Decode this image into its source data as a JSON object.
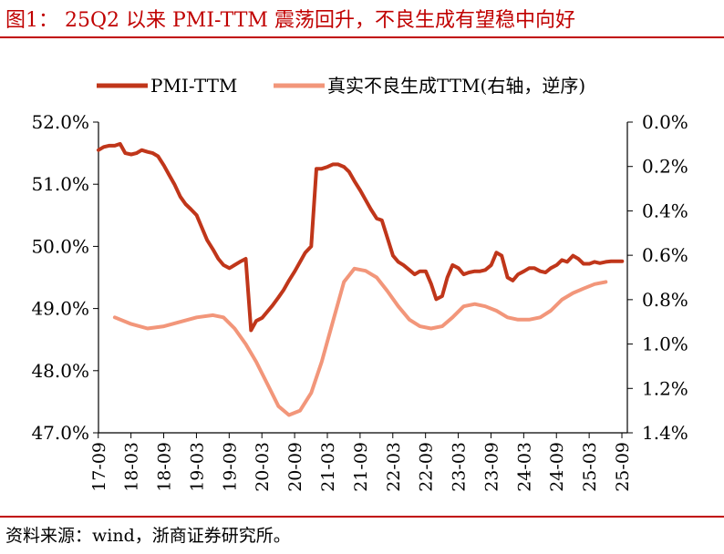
{
  "header": {
    "title": "图1： 25Q2 以来 PMI-TTM 震荡回升，不良生成有望稳中向好"
  },
  "footer": {
    "source": "资料来源：wind，浙商证券研究所。"
  },
  "colors": {
    "title": "#c00000",
    "pmi_line": "#c0361a",
    "npl_line": "#f2967a"
  },
  "chart_data": {
    "type": "line",
    "title": "",
    "legend": [
      "PMI-TTM",
      "真实不良生成TTM(右轴，逆序)"
    ],
    "legend_position": "top",
    "x_ticks": [
      "17-09",
      "18-03",
      "18-09",
      "19-03",
      "19-09",
      "20-03",
      "20-09",
      "21-03",
      "21-09",
      "22-03",
      "22-09",
      "23-03",
      "23-09",
      "24-03",
      "24-09",
      "25-03",
      "25-09"
    ],
    "y_left": {
      "label": "",
      "ylim": [
        47.0,
        52.0
      ],
      "ticks": [
        "47.0%",
        "48.0%",
        "49.0%",
        "50.0%",
        "51.0%",
        "52.0%"
      ]
    },
    "y_right": {
      "label": "",
      "ylim": [
        0.0,
        1.4
      ],
      "reversed": true,
      "ticks": [
        "0.0%",
        "0.2%",
        "0.4%",
        "0.6%",
        "0.8%",
        "1.0%",
        "1.2%",
        "1.4%"
      ]
    },
    "series": [
      {
        "name": "PMI-TTM",
        "axis": "left",
        "color": "#c0361a",
        "x": [
          2017.67,
          2017.75,
          2017.83,
          2017.92,
          2018.0,
          2018.08,
          2018.17,
          2018.25,
          2018.33,
          2018.42,
          2018.5,
          2018.58,
          2018.67,
          2018.75,
          2018.83,
          2018.92,
          2019.0,
          2019.08,
          2019.17,
          2019.25,
          2019.33,
          2019.42,
          2019.5,
          2019.58,
          2019.67,
          2019.75,
          2019.83,
          2019.92,
          2020.0,
          2020.08,
          2020.17,
          2020.25,
          2020.33,
          2020.42,
          2020.5,
          2020.58,
          2020.67,
          2020.75,
          2020.83,
          2020.92,
          2021.0,
          2021.08,
          2021.17,
          2021.25,
          2021.33,
          2021.42,
          2021.5,
          2021.58,
          2021.67,
          2021.75,
          2021.83,
          2021.92,
          2022.0,
          2022.08,
          2022.17,
          2022.25,
          2022.33,
          2022.42,
          2022.5,
          2022.58,
          2022.67,
          2022.75,
          2022.83,
          2022.92,
          2023.0,
          2023.08,
          2023.17,
          2023.25,
          2023.33,
          2023.42,
          2023.5,
          2023.58,
          2023.67,
          2023.75,
          2023.83,
          2023.92,
          2024.0,
          2024.08,
          2024.17,
          2024.25,
          2024.33,
          2024.42,
          2024.5,
          2024.58,
          2024.67,
          2024.75,
          2024.83,
          2024.92,
          2025.0,
          2025.08,
          2025.17,
          2025.25,
          2025.33,
          2025.42,
          2025.5,
          2025.58,
          2025.67
        ],
        "values": [
          51.55,
          51.6,
          51.62,
          51.62,
          51.65,
          51.5,
          51.48,
          51.5,
          51.55,
          51.52,
          51.5,
          51.45,
          51.3,
          51.15,
          51.0,
          50.8,
          50.68,
          50.6,
          50.5,
          50.3,
          50.1,
          49.95,
          49.8,
          49.7,
          49.65,
          49.7,
          49.75,
          49.8,
          48.65,
          48.8,
          48.85,
          48.95,
          49.05,
          49.18,
          49.3,
          49.45,
          49.6,
          49.75,
          49.9,
          50.0,
          51.25,
          51.25,
          51.28,
          51.32,
          51.32,
          51.28,
          51.2,
          51.05,
          50.9,
          50.75,
          50.6,
          50.45,
          50.42,
          50.15,
          49.85,
          49.75,
          49.7,
          49.62,
          49.55,
          49.6,
          49.6,
          49.4,
          49.15,
          49.2,
          49.5,
          49.7,
          49.65,
          49.55,
          49.58,
          49.6,
          49.6,
          49.62,
          49.7,
          49.9,
          49.85,
          49.5,
          49.45,
          49.55,
          49.6,
          49.65,
          49.65,
          49.6,
          49.58,
          49.65,
          49.7,
          49.78,
          49.75,
          49.85,
          49.8,
          49.72,
          49.72,
          49.75,
          49.73,
          49.75,
          49.76,
          49.76,
          49.76
        ]
      },
      {
        "name": "真实不良生成TTM(右轴，逆序)",
        "axis": "right",
        "color": "#f2967a",
        "x": [
          2017.92,
          2018.17,
          2018.42,
          2018.67,
          2018.92,
          2019.17,
          2019.42,
          2019.58,
          2019.75,
          2019.92,
          2020.08,
          2020.25,
          2020.42,
          2020.58,
          2020.75,
          2020.92,
          2021.08,
          2021.25,
          2021.42,
          2021.58,
          2021.75,
          2021.92,
          2022.08,
          2022.25,
          2022.42,
          2022.58,
          2022.75,
          2022.92,
          2023.08,
          2023.25,
          2023.42,
          2023.58,
          2023.75,
          2023.92,
          2024.08,
          2024.25,
          2024.42,
          2024.58,
          2024.75,
          2024.92,
          2025.08,
          2025.25,
          2025.42
        ],
        "values": [
          0.88,
          0.91,
          0.93,
          0.92,
          0.9,
          0.88,
          0.87,
          0.88,
          0.93,
          1.0,
          1.08,
          1.18,
          1.28,
          1.32,
          1.3,
          1.22,
          1.08,
          0.9,
          0.72,
          0.66,
          0.67,
          0.7,
          0.76,
          0.83,
          0.89,
          0.92,
          0.93,
          0.92,
          0.88,
          0.83,
          0.82,
          0.83,
          0.85,
          0.88,
          0.89,
          0.89,
          0.88,
          0.85,
          0.8,
          0.77,
          0.75,
          0.73,
          0.72
        ]
      }
    ]
  }
}
